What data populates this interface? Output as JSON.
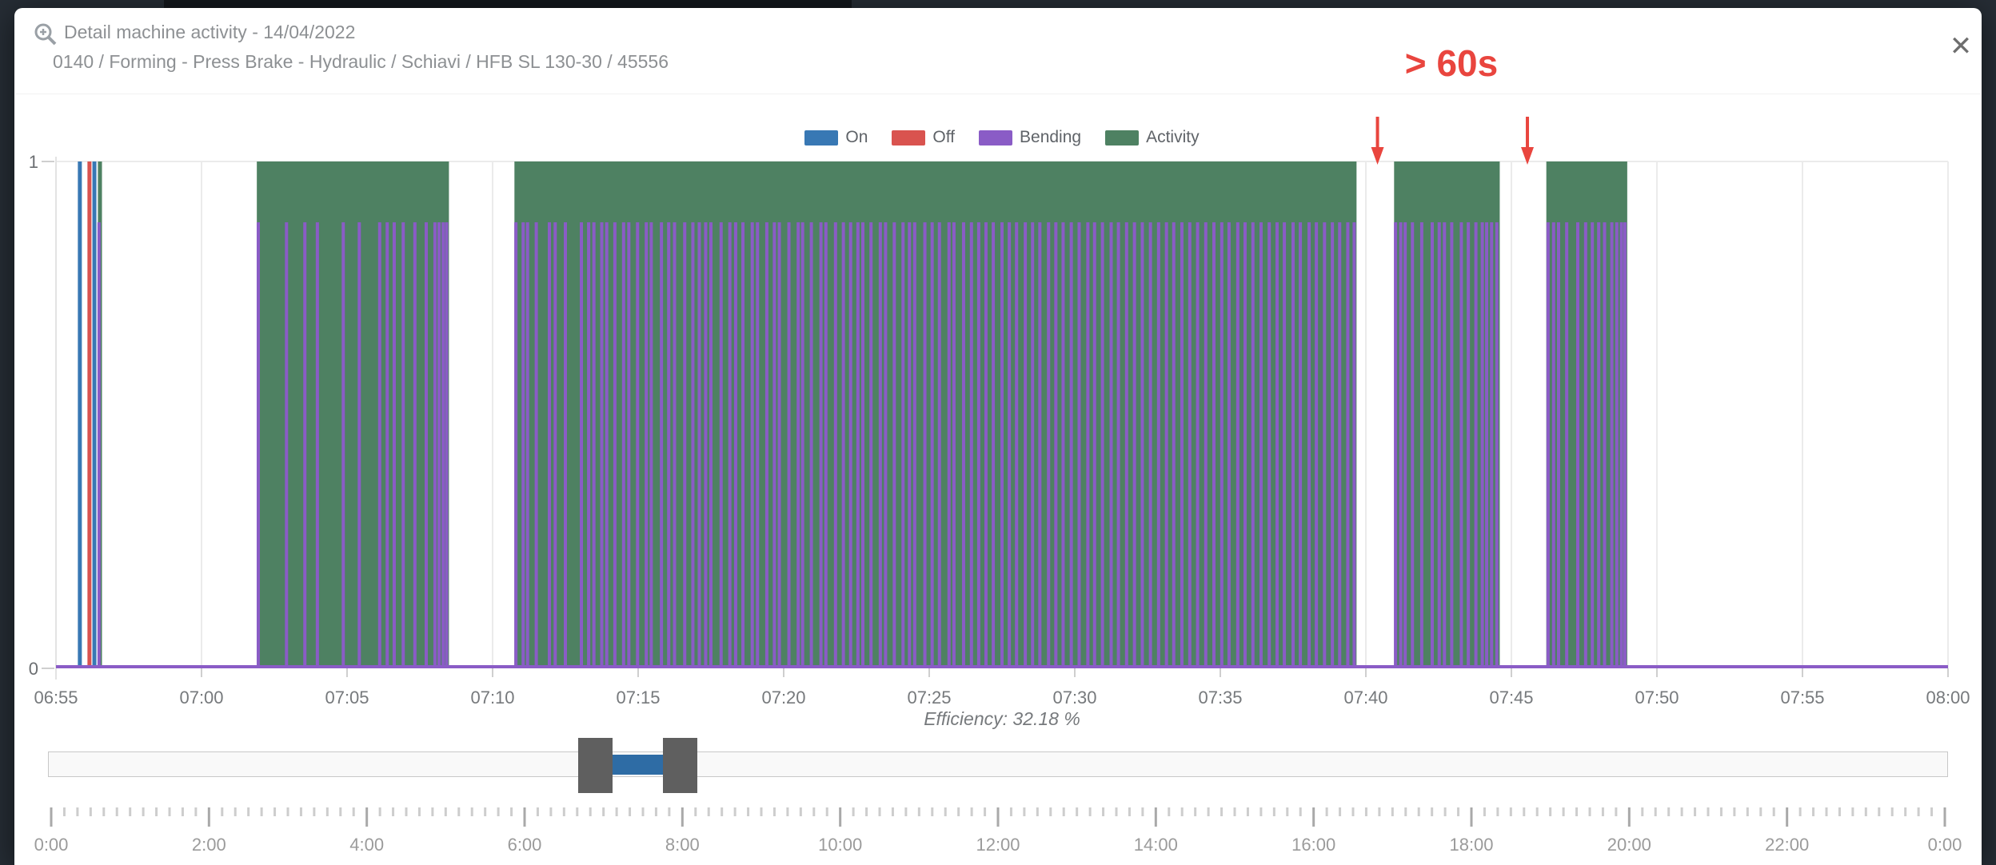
{
  "window": {
    "backdrop_color": "#262d35"
  },
  "header": {
    "title": "Detail machine activity - 14/04/2022",
    "subtitle": "0140 / Forming - Press Brake - Hydraulic / Schiavi / HFB SL 130-30 / 45556",
    "zoom_icon": "zoom-in-magnifier",
    "close_icon": "✕"
  },
  "chart_data": {
    "type": "area",
    "title": "Detail machine activity - 14/04/2022",
    "xlabel": "",
    "ylabel": "",
    "x_tick_labels": [
      "06:55",
      "07:00",
      "07:05",
      "07:10",
      "07:15",
      "07:20",
      "07:25",
      "07:30",
      "07:35",
      "07:40",
      "07:45",
      "07:50",
      "07:55",
      "08:00"
    ],
    "y_tick_labels": [
      "0",
      "1"
    ],
    "ylim": [
      0,
      1
    ],
    "x_minutes_span": 65,
    "grid": true,
    "legend_position": "top-center",
    "colors": {
      "on": "#3878b4",
      "off": "#d9534f",
      "bending": "#8a5cc6",
      "activity": "#4e8162",
      "grid": "#ebebeb",
      "axis": "#cfcfcf",
      "label": "#76797c",
      "annotation": "#e9453e"
    },
    "series": [
      {
        "name": "On",
        "type": "event-line",
        "color_key": "on",
        "height": 1,
        "events_min": [
          0.82,
          1.32
        ]
      },
      {
        "name": "Off",
        "type": "event-line",
        "color_key": "off",
        "height": 1,
        "events_min": [
          1.15
        ]
      },
      {
        "name": "Bending",
        "type": "event-line",
        "color_key": "bending",
        "height": 0.88,
        "baseline_at_zero": true,
        "events_min": [
          1.48,
          6.95,
          7.92,
          8.55,
          8.98,
          9.87,
          10.42,
          11.12,
          11.38,
          11.62,
          11.93,
          12.33,
          12.72,
          13.02,
          13.16,
          13.3,
          13.42,
          15.8,
          16.05,
          16.2,
          16.5,
          16.95,
          17.15,
          17.5,
          18.05,
          18.3,
          18.48,
          18.75,
          18.92,
          19.2,
          19.5,
          19.68,
          19.98,
          20.28,
          20.45,
          20.8,
          21.05,
          21.25,
          21.6,
          21.88,
          22.1,
          22.32,
          22.5,
          22.85,
          23.15,
          23.35,
          23.6,
          23.92,
          24.1,
          24.42,
          24.68,
          24.85,
          25.18,
          25.5,
          25.65,
          25.95,
          26.28,
          26.45,
          26.78,
          27.05,
          27.3,
          27.55,
          27.72,
          28.0,
          28.32,
          28.5,
          28.8,
          29.1,
          29.32,
          29.5,
          29.85,
          30.1,
          30.35,
          30.68,
          30.85,
          31.18,
          31.45,
          31.7,
          31.95,
          32.2,
          32.5,
          32.75,
          33.0,
          33.3,
          33.55,
          33.8,
          34.1,
          34.35,
          34.6,
          34.88,
          35.15,
          35.45,
          35.68,
          35.95,
          36.25,
          36.5,
          36.78,
          37.05,
          37.32,
          37.6,
          37.88,
          38.15,
          38.4,
          38.68,
          38.95,
          39.22,
          39.5,
          39.78,
          40.05,
          40.3,
          40.6,
          40.85,
          41.12,
          41.4,
          41.68,
          41.95,
          42.2,
          42.5,
          42.75,
          43.05,
          43.3,
          43.58,
          43.85,
          44.1,
          44.38,
          44.6,
          46.02,
          46.2,
          46.35,
          46.6,
          46.92,
          47.28,
          47.52,
          47.7,
          47.95,
          48.28,
          48.52,
          48.78,
          49.0,
          49.15,
          49.32,
          49.5,
          51.26,
          51.45,
          51.62,
          51.9,
          52.28,
          52.55,
          52.78,
          53.0,
          53.2,
          53.45,
          53.62,
          53.78,
          53.9
        ]
      },
      {
        "name": "Activity",
        "type": "block",
        "color_key": "activity",
        "height": 1,
        "blocks_min": [
          [
            1.44,
            1.58
          ],
          [
            6.9,
            13.5
          ],
          [
            15.75,
            44.68
          ],
          [
            45.97,
            49.6
          ],
          [
            51.2,
            53.98
          ]
        ]
      }
    ],
    "annotation": {
      "text": "> 60s",
      "arrows_min": [
        45.4,
        50.55
      ]
    },
    "efficiency_label": "Efficiency: 32.18 %"
  },
  "ruler": {
    "major_labels": [
      "0:00",
      "2:00",
      "4:00",
      "6:00",
      "8:00",
      "10:00",
      "12:00",
      "14:00",
      "16:00",
      "18:00",
      "20:00",
      "22:00",
      "0:00"
    ],
    "minor_per_major": 12
  }
}
